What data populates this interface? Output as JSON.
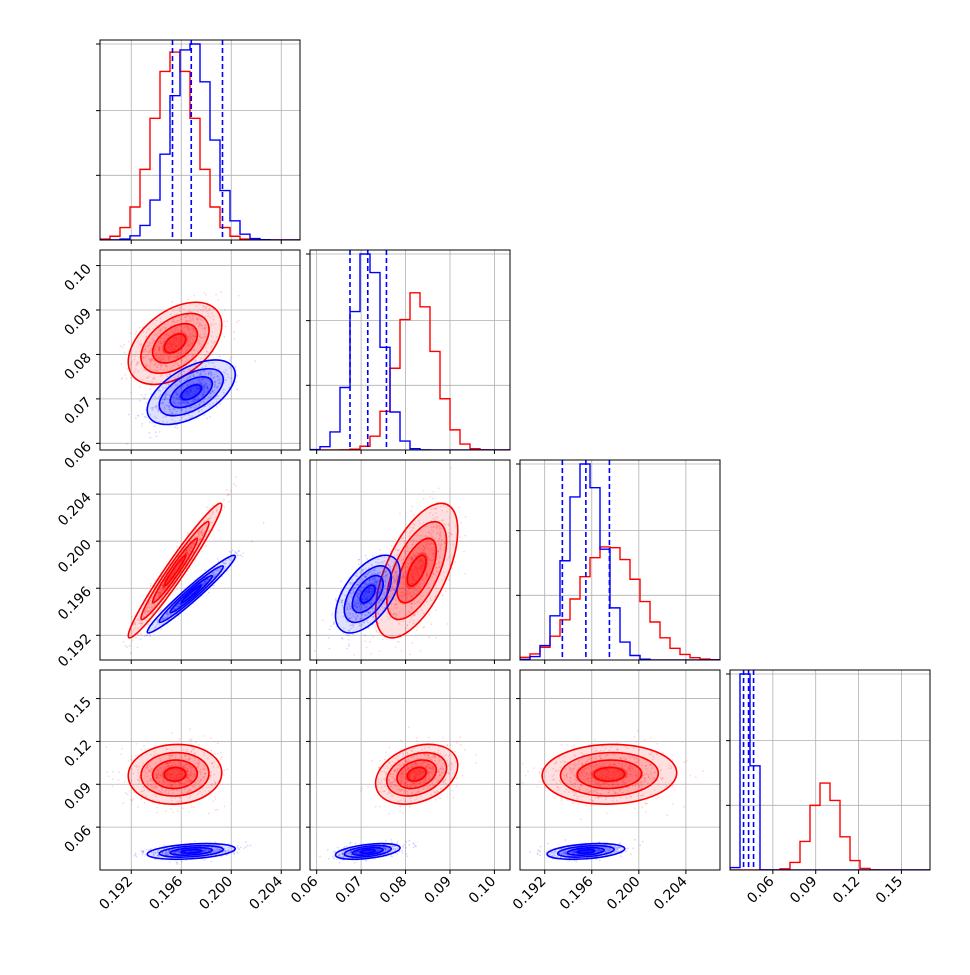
{
  "chart_data": {
    "type": "corner",
    "parameters": [
      {
        "range": [
          0.1895,
          0.2055
        ],
        "ticks": [
          "0.192",
          "0.196",
          "0.200",
          "0.204"
        ],
        "tick_values": [
          0.192,
          0.196,
          0.2,
          0.204
        ]
      },
      {
        "range": [
          0.0585,
          0.1035
        ],
        "ticks": [
          "0.06",
          "0.07",
          "0.08",
          "0.09",
          "0.10"
        ],
        "tick_values": [
          0.06,
          0.07,
          0.08,
          0.09,
          0.1
        ]
      },
      {
        "range": [
          0.1899,
          0.2069
        ],
        "ticks": [
          "0.192",
          "0.196",
          "0.200",
          "0.204"
        ],
        "tick_values": [
          0.192,
          0.196,
          0.2,
          0.204
        ]
      },
      {
        "range": [
          0.03,
          0.17
        ],
        "ticks": [
          "0.06",
          "0.09",
          "0.12",
          "0.15"
        ],
        "tick_values": [
          0.06,
          0.09,
          0.12,
          0.15
        ]
      }
    ],
    "series": [
      {
        "color": "#ff0000",
        "mean": [
          0.1955,
          0.0825,
          0.1975,
          0.097
        ],
        "std": [
          0.0017,
          0.0042,
          0.0026,
          0.0095
        ],
        "correlations": [
          [
            1,
            0.45,
            0.97,
            0.05
          ],
          [
            0.45,
            1,
            0.6,
            0.3
          ],
          [
            0.97,
            0.6,
            1,
            0.05
          ],
          [
            0.05,
            0.3,
            0.05,
            1
          ]
        ],
        "quantile_lines": []
      },
      {
        "color": "#0000ff",
        "mean": [
          0.1968,
          0.0715,
          0.1955,
          0.043
        ],
        "std": [
          0.0016,
          0.0033,
          0.0015,
          0.0025
        ],
        "correlations": [
          [
            1,
            0.55,
            0.97,
            0.35
          ],
          [
            0.55,
            1,
            0.55,
            0.45
          ],
          [
            0.97,
            0.55,
            1,
            0.35
          ],
          [
            0.35,
            0.45,
            0.35,
            1
          ]
        ],
        "quantile_lines": [
          [
            0.1953,
            0.1968,
            0.1993
          ],
          [
            0.0675,
            0.0715,
            0.0757
          ],
          [
            0.1935,
            0.1955,
            0.1975
          ],
          [
            0.0395,
            0.043,
            0.0465
          ]
        ]
      }
    ],
    "grid": true
  }
}
